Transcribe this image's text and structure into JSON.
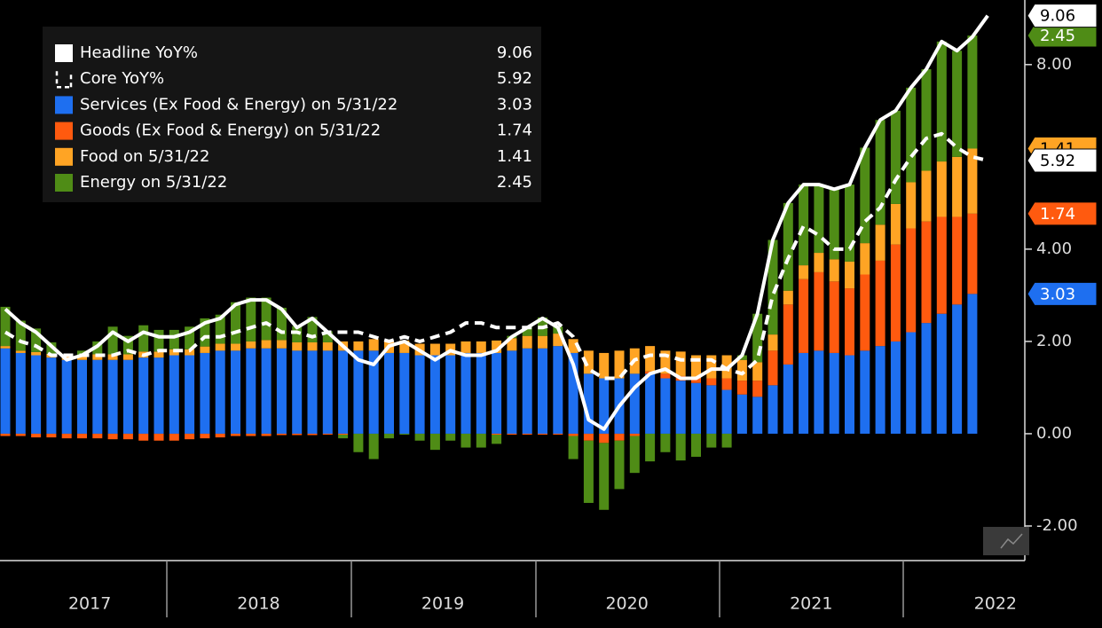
{
  "chart_data": {
    "type": "bar",
    "categories": [
      null,
      null,
      null,
      null,
      null,
      "2017",
      null,
      null,
      null,
      null,
      null,
      null,
      null,
      null,
      null,
      null,
      "2018",
      null,
      null,
      null,
      null,
      null,
      null,
      null,
      null,
      null,
      null,
      null,
      "2019",
      null,
      null,
      null,
      null,
      null,
      null,
      null,
      null,
      null,
      null,
      null,
      "2020",
      null,
      null,
      null,
      null,
      null,
      null,
      null,
      null,
      null,
      null,
      null,
      "2021",
      null,
      null,
      null,
      null,
      null,
      null,
      null,
      null,
      null,
      null,
      null,
      "2022"
    ],
    "series": [
      {
        "name": "Headline YoY%",
        "kind": "line",
        "color": "#ffffff",
        "values": [
          2.7,
          2.4,
          2.2,
          1.9,
          1.6,
          1.7,
          1.9,
          2.2,
          2.0,
          2.2,
          2.1,
          2.1,
          2.2,
          2.4,
          2.5,
          2.8,
          2.9,
          2.9,
          2.7,
          2.3,
          2.5,
          2.2,
          1.9,
          1.6,
          1.5,
          1.9,
          2.0,
          1.8,
          1.6,
          1.8,
          1.7,
          1.7,
          1.8,
          2.1,
          2.3,
          2.5,
          2.3,
          1.5,
          0.3,
          0.1,
          0.6,
          1.0,
          1.3,
          1.4,
          1.2,
          1.2,
          1.4,
          1.4,
          1.7,
          2.6,
          4.2,
          5.0,
          5.4,
          5.4,
          5.3,
          5.4,
          6.2,
          6.8,
          7.0,
          7.5,
          7.9,
          8.5,
          8.3,
          8.6,
          9.06
        ]
      },
      {
        "name": "Core YoY%",
        "kind": "line",
        "dashed": true,
        "color": "#ffffff",
        "values": [
          2.2,
          2.0,
          1.9,
          1.7,
          1.7,
          1.7,
          1.7,
          1.7,
          1.8,
          1.7,
          1.8,
          1.8,
          1.8,
          2.1,
          2.1,
          2.2,
          2.3,
          2.4,
          2.2,
          2.2,
          2.1,
          2.2,
          2.2,
          2.2,
          2.1,
          2.0,
          2.1,
          2.0,
          2.1,
          2.2,
          2.4,
          2.4,
          2.3,
          2.3,
          2.3,
          2.3,
          2.4,
          2.1,
          1.4,
          1.2,
          1.2,
          1.6,
          1.7,
          1.7,
          1.6,
          1.6,
          1.6,
          1.4,
          1.3,
          1.6,
          3.0,
          3.8,
          4.5,
          4.3,
          4.0,
          4.0,
          4.6,
          4.9,
          5.5,
          6.0,
          6.4,
          6.5,
          6.2,
          6.0,
          5.92
        ]
      },
      {
        "name": "Services (Ex Food & Energy) on 5/31/22",
        "kind": "bar",
        "color": "#1e6ff0",
        "values": [
          1.85,
          1.75,
          1.7,
          1.65,
          1.6,
          1.6,
          1.6,
          1.6,
          1.6,
          1.65,
          1.65,
          1.7,
          1.7,
          1.75,
          1.8,
          1.8,
          1.85,
          1.85,
          1.85,
          1.8,
          1.8,
          1.8,
          1.8,
          1.8,
          1.8,
          1.75,
          1.75,
          1.7,
          1.7,
          1.7,
          1.75,
          1.75,
          1.75,
          1.8,
          1.85,
          1.85,
          1.9,
          1.75,
          1.3,
          1.2,
          1.2,
          1.3,
          1.3,
          1.2,
          1.15,
          1.1,
          1.05,
          0.95,
          0.85,
          0.8,
          1.05,
          1.5,
          1.75,
          1.8,
          1.75,
          1.7,
          1.8,
          1.9,
          2.0,
          2.2,
          2.4,
          2.6,
          2.8,
          3.03,
          null
        ]
      },
      {
        "name": "Goods (Ex Food & Energy) on 5/31/22",
        "kind": "bar",
        "color": "#ff5a0f",
        "values": [
          -0.05,
          -0.05,
          -0.08,
          -0.08,
          -0.1,
          -0.1,
          -0.1,
          -0.12,
          -0.12,
          -0.15,
          -0.15,
          -0.15,
          -0.12,
          -0.1,
          -0.08,
          -0.05,
          -0.05,
          -0.05,
          -0.03,
          -0.03,
          -0.03,
          -0.02,
          -0.02,
          0.0,
          0.0,
          0.0,
          0.0,
          0.0,
          0.0,
          0.0,
          0.0,
          0.0,
          -0.02,
          -0.02,
          -0.02,
          -0.02,
          -0.02,
          -0.05,
          -0.15,
          -0.2,
          -0.15,
          -0.05,
          0.05,
          0.1,
          0.1,
          0.1,
          0.15,
          0.25,
          0.3,
          0.35,
          0.75,
          1.3,
          1.6,
          1.7,
          1.55,
          1.45,
          1.65,
          1.85,
          2.1,
          2.25,
          2.2,
          2.1,
          1.9,
          1.74,
          null
        ]
      },
      {
        "name": "Food on 5/31/22",
        "kind": "bar",
        "color": "#ffa424",
        "values": [
          0.05,
          0.05,
          0.07,
          0.08,
          0.1,
          0.1,
          0.12,
          0.12,
          0.12,
          0.13,
          0.13,
          0.13,
          0.13,
          0.14,
          0.15,
          0.15,
          0.15,
          0.18,
          0.18,
          0.18,
          0.18,
          0.18,
          0.2,
          0.2,
          0.25,
          0.25,
          0.27,
          0.25,
          0.25,
          0.25,
          0.25,
          0.25,
          0.27,
          0.27,
          0.27,
          0.27,
          0.27,
          0.3,
          0.5,
          0.55,
          0.6,
          0.55,
          0.55,
          0.5,
          0.53,
          0.5,
          0.5,
          0.5,
          0.45,
          0.4,
          0.35,
          0.3,
          0.3,
          0.42,
          0.48,
          0.58,
          0.68,
          0.78,
          0.88,
          1.0,
          1.1,
          1.2,
          1.3,
          1.41,
          null
        ]
      },
      {
        "name": "Energy on 5/31/22",
        "kind": "bar",
        "color": "#4f8c16",
        "values": [
          0.85,
          0.65,
          0.51,
          0.25,
          0.0,
          0.1,
          0.28,
          0.6,
          0.4,
          0.57,
          0.47,
          0.42,
          0.49,
          0.61,
          0.63,
          0.9,
          0.95,
          0.92,
          0.7,
          0.35,
          0.55,
          0.24,
          -0.08,
          -0.4,
          -0.55,
          -0.1,
          -0.02,
          -0.15,
          -0.35,
          -0.15,
          -0.3,
          -0.3,
          -0.2,
          0.05,
          0.2,
          0.4,
          0.15,
          -0.5,
          -1.35,
          -1.45,
          -1.05,
          -0.8,
          -0.6,
          -0.4,
          -0.58,
          -0.5,
          -0.3,
          -0.3,
          0.1,
          1.05,
          2.05,
          1.9,
          1.75,
          1.48,
          1.52,
          1.67,
          2.07,
          2.27,
          2.02,
          2.05,
          2.2,
          2.6,
          2.3,
          2.45,
          null
        ]
      }
    ],
    "ylim": [
      -2.75,
      9.4
    ],
    "yticks": [
      {
        "value": -2,
        "label": "-2.00"
      },
      {
        "value": 0,
        "label": "0.00"
      },
      {
        "value": 2,
        "label": "2.00"
      },
      {
        "value": 4,
        "label": "4.00"
      },
      {
        "value": 8,
        "label": "8.00"
      }
    ],
    "legend": "upper left"
  }
}
